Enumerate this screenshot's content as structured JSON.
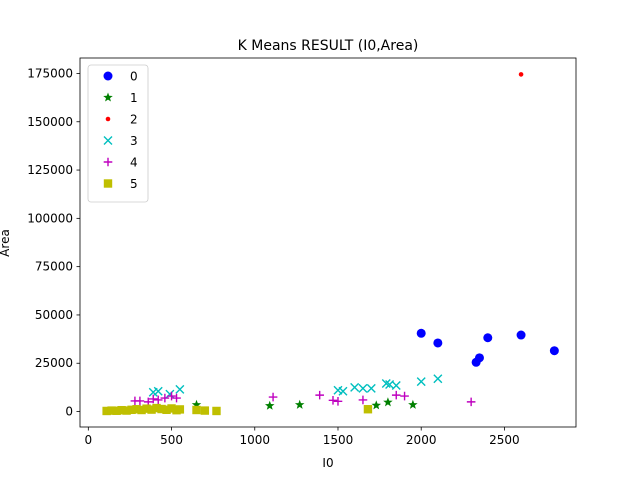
{
  "chart_data": {
    "type": "scatter",
    "title": "K Means RESULT (I0,Area)",
    "xlabel": "I0",
    "ylabel": "Area",
    "xlim": [
      -50,
      2930
    ],
    "ylim": [
      -8000,
      183000
    ],
    "xticks": [
      0,
      500,
      1000,
      1500,
      2000,
      2500
    ],
    "yticks": [
      0,
      25000,
      50000,
      75000,
      100000,
      125000,
      150000,
      175000
    ],
    "grid": false,
    "legend_position": "top-left",
    "series": [
      {
        "name": "0",
        "marker": "circle",
        "color": "#0000ff",
        "points": [
          [
            2000,
            40500
          ],
          [
            2100,
            35500
          ],
          [
            2330,
            25500
          ],
          [
            2350,
            27800
          ],
          [
            2400,
            38200
          ],
          [
            2600,
            39600
          ],
          [
            2800,
            31500
          ]
        ]
      },
      {
        "name": "1",
        "marker": "star",
        "color": "#008000",
        "points": [
          [
            650,
            3500
          ],
          [
            1090,
            3000
          ],
          [
            1270,
            3500
          ],
          [
            1730,
            3200
          ],
          [
            1800,
            4800
          ],
          [
            1950,
            3500
          ]
        ]
      },
      {
        "name": "2",
        "marker": "point",
        "color": "#ff0000",
        "points": [
          [
            2600,
            174500
          ]
        ]
      },
      {
        "name": "3",
        "marker": "x",
        "color": "#00bfbf",
        "points": [
          [
            390,
            10000
          ],
          [
            420,
            10500
          ],
          [
            490,
            9000
          ],
          [
            550,
            11500
          ],
          [
            1500,
            11000
          ],
          [
            1530,
            10500
          ],
          [
            1600,
            12500
          ],
          [
            1650,
            12000
          ],
          [
            1700,
            12000
          ],
          [
            1790,
            14500
          ],
          [
            1810,
            14000
          ],
          [
            1850,
            13500
          ],
          [
            2000,
            15500
          ],
          [
            2100,
            17000
          ]
        ]
      },
      {
        "name": "4",
        "marker": "plus",
        "color": "#bf00bf",
        "points": [
          [
            280,
            5500
          ],
          [
            310,
            5500
          ],
          [
            360,
            5000
          ],
          [
            390,
            6500
          ],
          [
            420,
            6000
          ],
          [
            460,
            7000
          ],
          [
            500,
            8000
          ],
          [
            530,
            7000
          ],
          [
            1110,
            7500
          ],
          [
            1390,
            8500
          ],
          [
            1470,
            5800
          ],
          [
            1500,
            5300
          ],
          [
            1650,
            6000
          ],
          [
            1850,
            8500
          ],
          [
            1900,
            8000
          ],
          [
            2300,
            5000
          ]
        ]
      },
      {
        "name": "5",
        "marker": "square",
        "color": "#bfbf00",
        "points": [
          [
            110,
            300
          ],
          [
            140,
            500
          ],
          [
            170,
            400
          ],
          [
            200,
            700
          ],
          [
            230,
            500
          ],
          [
            260,
            900
          ],
          [
            290,
            1200
          ],
          [
            320,
            800
          ],
          [
            350,
            1500
          ],
          [
            380,
            1000
          ],
          [
            410,
            1800
          ],
          [
            440,
            1300
          ],
          [
            470,
            900
          ],
          [
            500,
            1600
          ],
          [
            530,
            700
          ],
          [
            550,
            1100
          ],
          [
            650,
            800
          ],
          [
            700,
            500
          ],
          [
            770,
            300
          ],
          [
            1680,
            1200
          ]
        ]
      }
    ]
  }
}
